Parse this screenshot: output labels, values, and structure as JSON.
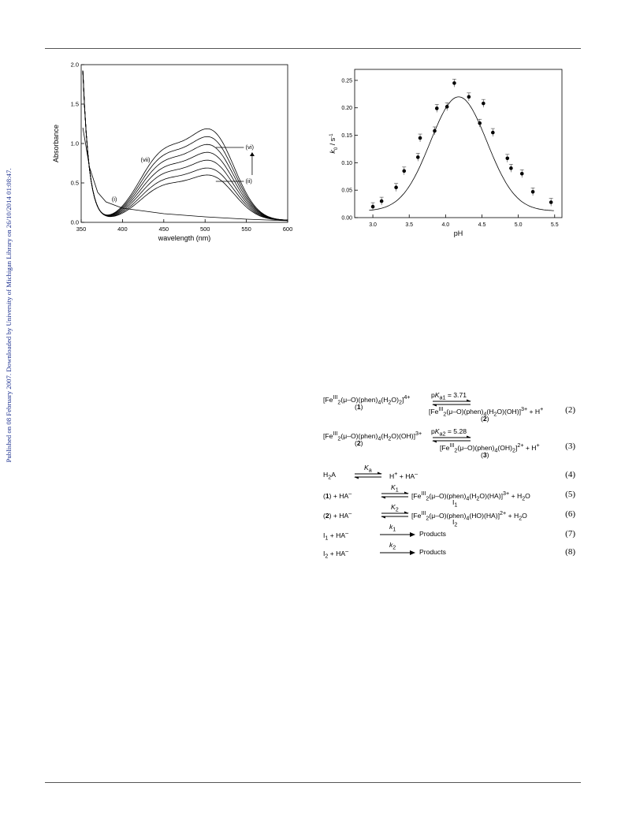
{
  "sidebar": {
    "text": "Published on 08 February 2007. Downloaded by University of Michigan Library on 26/10/2014 01:08:47."
  },
  "figures": {
    "spectra_labels": [
      "(i)",
      "(ii)",
      "(vi)",
      "(vii)"
    ]
  },
  "chart_data": [
    {
      "type": "line",
      "title": "",
      "xlabel": "wavelength (nm)",
      "ylabel": "Absorbance",
      "xlim": [
        350,
        600
      ],
      "ylim": [
        0,
        2.0
      ],
      "xticks": [
        "350",
        "400",
        "450",
        "500",
        "550",
        "600"
      ],
      "yticks": [
        "0.0",
        "0.5",
        "1.0",
        "1.5",
        "2.0"
      ],
      "grid": false,
      "series": [
        {
          "name": "(i)",
          "points": [
            [
              352,
              1.2
            ],
            [
              360,
              0.7
            ],
            [
              370,
              0.38
            ],
            [
              380,
              0.26
            ],
            [
              400,
              0.18
            ],
            [
              450,
              0.11
            ],
            [
              500,
              0.07
            ],
            [
              550,
              0.04
            ],
            [
              600,
              0.02
            ]
          ]
        },
        {
          "name": "",
          "scale": 0.52
        },
        {
          "name": "",
          "scale": 0.6
        },
        {
          "name": "",
          "scale": 0.69
        },
        {
          "name": "",
          "scale": 0.78
        },
        {
          "name": "",
          "scale": 0.87
        },
        {
          "name": "",
          "scale": 0.96
        },
        {
          "name": "",
          "scale": 1.05
        }
      ],
      "arrow": "up"
    },
    {
      "type": "scatter",
      "title": "",
      "xlabel": "pH",
      "ylabel": "k0 / s-1",
      "xlim": [
        2.75,
        5.6
      ],
      "ylim": [
        0,
        0.27
      ],
      "xticks": [
        "3.0",
        "3.5",
        "4.0",
        "4.5",
        "5.0",
        "5.5"
      ],
      "yticks": [
        "0.00",
        "0.05",
        "0.10",
        "0.15",
        "0.20",
        "0.25"
      ],
      "grid": false,
      "points": [
        {
          "x": 3.0,
          "y": 0.02
        },
        {
          "x": 3.12,
          "y": 0.03
        },
        {
          "x": 3.32,
          "y": 0.055
        },
        {
          "x": 3.43,
          "y": 0.085
        },
        {
          "x": 3.62,
          "y": 0.11
        },
        {
          "x": 3.65,
          "y": 0.145
        },
        {
          "x": 3.85,
          "y": 0.158
        },
        {
          "x": 3.88,
          "y": 0.199
        },
        {
          "x": 4.02,
          "y": 0.202
        },
        {
          "x": 4.12,
          "y": 0.245
        },
        {
          "x": 4.32,
          "y": 0.22
        },
        {
          "x": 4.47,
          "y": 0.172
        },
        {
          "x": 4.52,
          "y": 0.208
        },
        {
          "x": 4.65,
          "y": 0.155
        },
        {
          "x": 4.85,
          "y": 0.108
        },
        {
          "x": 4.9,
          "y": 0.09
        },
        {
          "x": 5.05,
          "y": 0.08
        },
        {
          "x": 5.2,
          "y": 0.047
        },
        {
          "x": 5.45,
          "y": 0.028
        }
      ],
      "fit_curve": {
        "peak_x": 4.18,
        "peak_y": 0.22,
        "width": 0.55,
        "baseline": 0.012
      }
    }
  ],
  "equations": [
    {
      "n": "(2)",
      "left": "[Fe<sup>III</sup><sub>2</sub>(μ–O)(phen)<sub>4</sub>(H<sub>2</sub>O)<sub>2</sub>]<sup>4+</sup>",
      "left_label": "(<b>1</b>)",
      "over": "p<i>K</i><sub>a1</sub> = 3.71",
      "right": "[Fe<sup>III</sup><sub>2</sub>(μ–O)(phen)<sub>4</sub>(H<sub>2</sub>O)(OH)]<sup>3+</sup>  +  H<sup>+</sup>",
      "right_label": "(<b>2</b>)"
    },
    {
      "n": "(3)",
      "left": "[Fe<sup>III</sup><sub>2</sub>(μ–O)(phen)<sub>4</sub>(H<sub>2</sub>O)(OH)]<sup>3+</sup>",
      "left_label": "(<b>2</b>)",
      "over": "p<i>K</i><sub>a2</sub> = 5.28",
      "right": "[Fe<sup>III</sup><sub>2</sub>(μ–O)(phen)<sub>4</sub>(OH)<sub>2</sub>]<sup>2+</sup>  +  H<sup>+</sup>",
      "right_label": "(<b>3</b>)"
    },
    {
      "n": "(4)",
      "text": "H<sub>2</sub>A",
      "over": "<i>K</i><sub>a</sub>",
      "right": "H<sup>+</sup>   +   HA<sup>–</sup>"
    },
    {
      "n": "(5)",
      "text": "(<b>1</b>)   +   HA<sup>–</sup>",
      "over": "<i>K</i><sub>1</sub>",
      "right": "[Fe<sup>III</sup><sub>2</sub>(μ–O)(phen)<sub>4</sub>(H<sub>2</sub>O)(HA)]<sup>3+</sup>   +   H<sub>2</sub>O",
      "below": "I<sub>1</sub>"
    },
    {
      "n": "(6)",
      "text": "(<b>2</b>)   +   HA<sup>–</sup>",
      "over": "<i>K</i><sub>2</sub>",
      "right": "[Fe<sup>III</sup><sub>2</sub>(μ–O)(phen)<sub>4</sub>(HO)(HA)]<sup>2+</sup>   +   H<sub>2</sub>O",
      "below": "I<sub>2</sub>"
    },
    {
      "n": "(7)",
      "text": "I<sub>1</sub>    +    HA<sup>–</sup>",
      "over": "<i>k</i><sub>1</sub>",
      "right": "Products"
    },
    {
      "n": "(8)",
      "text": "I<sub>2</sub>    +    HA<sup>–</sup>",
      "over": "<i>k</i><sub>2</sub>",
      "right": "Products"
    }
  ]
}
